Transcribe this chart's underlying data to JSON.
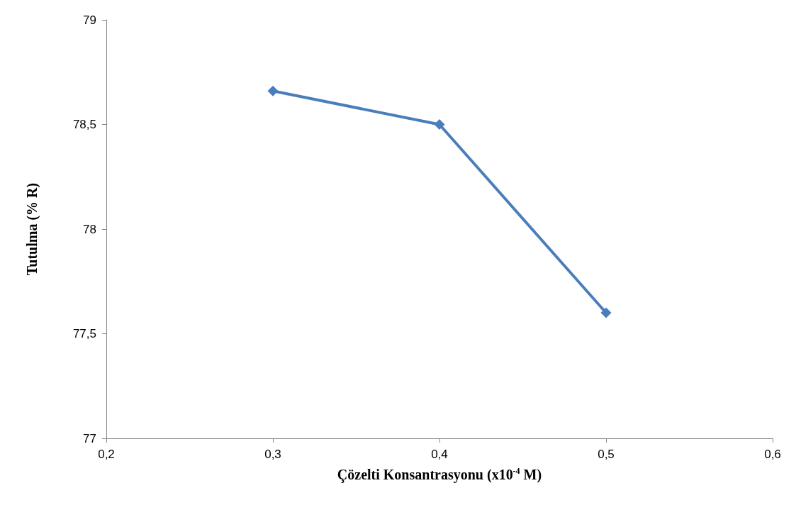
{
  "chart_data": {
    "type": "line",
    "xlabel": "Çözelti Konsantrasyonu (x10$^{-4}$ M)",
    "ylabel": "Tutulma (% R)",
    "x": [
      0.3,
      0.4,
      0.5
    ],
    "series": [
      {
        "color": "#4a7ebb",
        "values": [
          78.66,
          78.5,
          77.6
        ]
      }
    ],
    "xlim": [
      0.2,
      0.6
    ],
    "xticks": [
      {
        "value": 0.2,
        "label": "0,2"
      },
      {
        "value": 0.3,
        "label": "0,3"
      },
      {
        "value": 0.4,
        "label": "0,4"
      },
      {
        "value": 0.5,
        "label": "0,5"
      },
      {
        "value": 0.6,
        "label": "0,6"
      }
    ],
    "ylim": [
      77,
      79
    ],
    "yticks": [
      77,
      {
        "value": 77.5,
        "label": "77,5"
      },
      78,
      {
        "value": 78.5,
        "label": "78,5"
      },
      79
    ],
    "grid": false,
    "marker": "diamond",
    "line_style": "solid"
  }
}
